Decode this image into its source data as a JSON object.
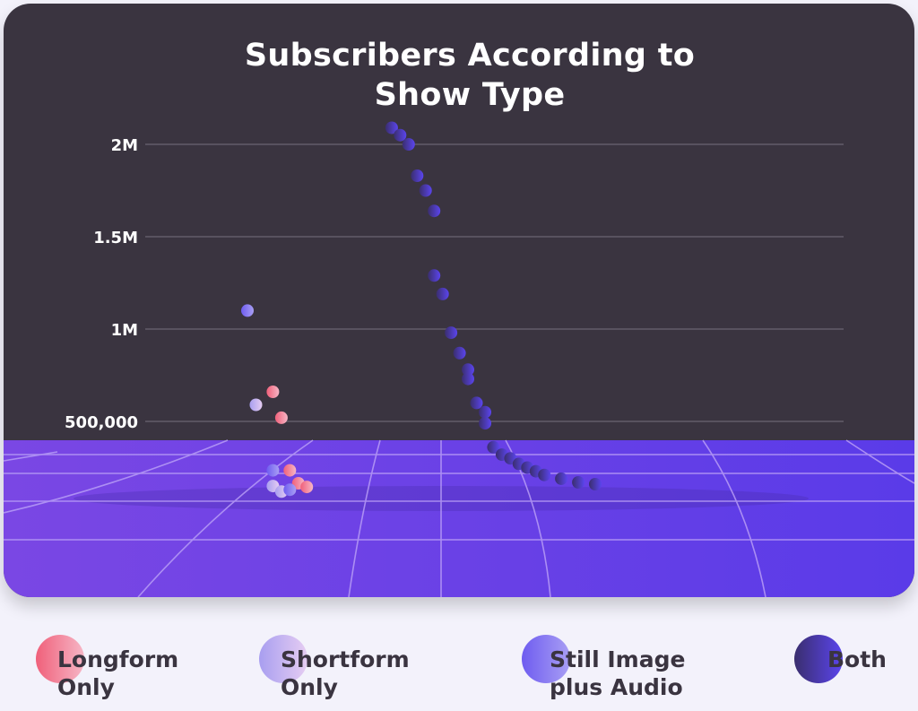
{
  "chart_data": {
    "type": "scatter",
    "title_lines": [
      "Subscribers According to",
      "Show Type"
    ],
    "xlabel": "",
    "ylabel": "",
    "ylim": [
      0,
      2100000
    ],
    "y_ticks": [
      {
        "value": 500000,
        "label": "500,000"
      },
      {
        "value": 1000000,
        "label": "1M"
      },
      {
        "value": 1500000,
        "label": "1.5M"
      },
      {
        "value": 2000000,
        "label": "2M"
      }
    ],
    "grid": true,
    "legend_position": "bottom",
    "series": [
      {
        "name": "Longform Only",
        "color_from": "#f0607a",
        "color_to": "#f6b6c6",
        "points": [
          {
            "x": 11,
            "y": 660000
          },
          {
            "x": 12,
            "y": 520000
          },
          {
            "x": 13,
            "y": 235000
          },
          {
            "x": 14,
            "y": 165000
          },
          {
            "x": 15,
            "y": 145000
          }
        ]
      },
      {
        "name": "Shortform Only",
        "color_from": "#a89ef0",
        "color_to": "#e6cdf2",
        "points": [
          {
            "x": 9,
            "y": 590000
          },
          {
            "x": 11,
            "y": 150000
          },
          {
            "x": 12,
            "y": 120000
          }
        ]
      },
      {
        "name": "Still Image plus Audio",
        "color_from": "#6e5cf0",
        "color_to": "#a99ff4",
        "points": [
          {
            "x": 8,
            "y": 1100000
          },
          {
            "x": 11,
            "y": 235000
          },
          {
            "x": 13,
            "y": 130000
          }
        ]
      },
      {
        "name": "Both",
        "color_from": "#3a2e6e",
        "color_to": "#5b45ee",
        "points": [
          {
            "x": 25,
            "y": 2090000
          },
          {
            "x": 26,
            "y": 2050000
          },
          {
            "x": 27,
            "y": 2000000
          },
          {
            "x": 28,
            "y": 1830000
          },
          {
            "x": 29,
            "y": 1750000
          },
          {
            "x": 30,
            "y": 1640000
          },
          {
            "x": 30,
            "y": 1290000
          },
          {
            "x": 31,
            "y": 1190000
          },
          {
            "x": 32,
            "y": 980000
          },
          {
            "x": 33,
            "y": 870000
          },
          {
            "x": 34,
            "y": 780000
          },
          {
            "x": 34,
            "y": 730000
          },
          {
            "x": 35,
            "y": 600000
          },
          {
            "x": 36,
            "y": 550000
          },
          {
            "x": 36,
            "y": 490000
          },
          {
            "x": 37,
            "y": 360000
          },
          {
            "x": 38,
            "y": 320000
          },
          {
            "x": 39,
            "y": 300000
          },
          {
            "x": 40,
            "y": 270000
          },
          {
            "x": 41,
            "y": 250000
          },
          {
            "x": 42,
            "y": 230000
          },
          {
            "x": 43,
            "y": 210000
          },
          {
            "x": 45,
            "y": 190000
          },
          {
            "x": 47,
            "y": 170000
          },
          {
            "x": 49,
            "y": 160000
          }
        ]
      }
    ]
  },
  "legend": {
    "items": [
      {
        "lines": [
          "Longform",
          "Only"
        ]
      },
      {
        "lines": [
          "Shortform",
          "Only"
        ]
      },
      {
        "lines": [
          "Still Image",
          "plus Audio"
        ]
      },
      {
        "lines": [
          "Both",
          ""
        ]
      }
    ]
  }
}
